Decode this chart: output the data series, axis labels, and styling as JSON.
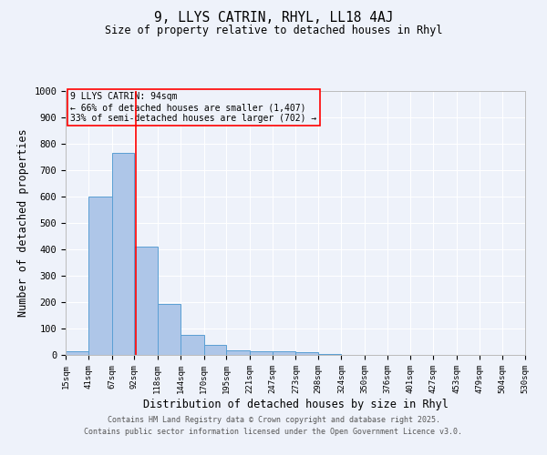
{
  "title": "9, LLYS CATRIN, RHYL, LL18 4AJ",
  "subtitle": "Size of property relative to detached houses in Rhyl",
  "xlabel": "Distribution of detached houses by size in Rhyl",
  "ylabel": "Number of detached properties",
  "bar_color": "#aec6e8",
  "bar_edge_color": "#5a9fd4",
  "background_color": "#eef2fa",
  "grid_color": "#ffffff",
  "red_line_x": 94,
  "annotation_title": "9 LLYS CATRIN: 94sqm",
  "annotation_line1": "← 66% of detached houses are smaller (1,407)",
  "annotation_line2": "33% of semi-detached houses are larger (702) →",
  "ylim": [
    0,
    1000
  ],
  "bin_edges": [
    15,
    41,
    67,
    92,
    118,
    144,
    170,
    195,
    221,
    247,
    273,
    298,
    324,
    350,
    376,
    401,
    427,
    453,
    479,
    504,
    530
  ],
  "bar_heights": [
    13,
    600,
    765,
    410,
    192,
    75,
    38,
    18,
    15,
    13,
    12,
    5,
    0,
    0,
    0,
    0,
    0,
    0,
    0,
    0
  ],
  "yticks": [
    0,
    100,
    200,
    300,
    400,
    500,
    600,
    700,
    800,
    900,
    1000
  ],
  "footer_line1": "Contains HM Land Registry data © Crown copyright and database right 2025.",
  "footer_line2": "Contains public sector information licensed under the Open Government Licence v3.0."
}
